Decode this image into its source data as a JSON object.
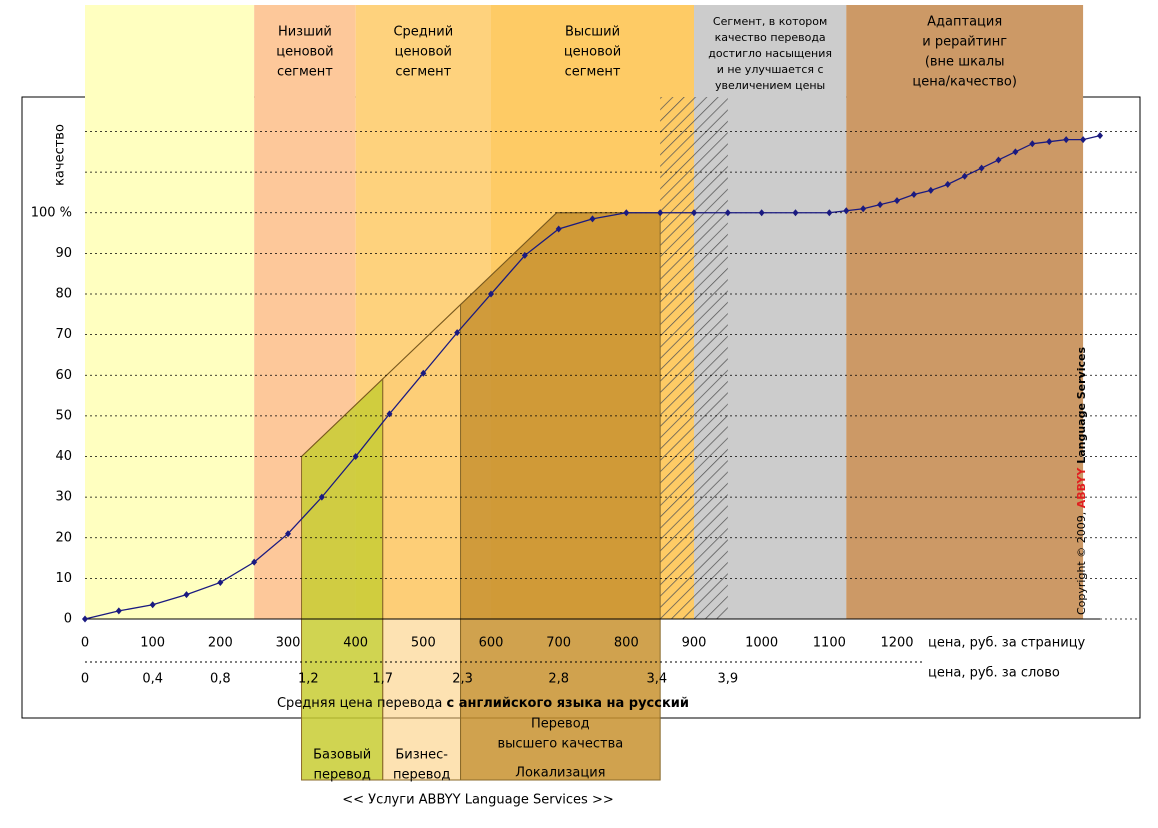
{
  "chart_data": {
    "type": "line",
    "ylabel": "качество",
    "xlabel": "цена, руб. за страницу",
    "x2label": "цена, руб. за слово",
    "caption_regular": "Средняя цена перевода",
    "caption_bold": "с английского языка на русский",
    "footer": "<< Услуги ABBYY Language Services >>",
    "copyright": [
      "Copyright © 2009, ",
      "ABBYY",
      " Language Services"
    ],
    "xlim": [
      0,
      1500
    ],
    "ylim": [
      0,
      128.5
    ],
    "xticks": [
      0,
      100,
      200,
      300,
      400,
      500,
      600,
      700,
      800,
      900,
      1000,
      1100,
      1200
    ],
    "x2ticks": [
      0,
      {
        "value": 100,
        "label": "0,4"
      },
      {
        "value": 200,
        "label": "0,8"
      },
      {
        "value": 330,
        "label": "1,2"
      },
      {
        "value": 440,
        "label": "1,7"
      },
      {
        "value": 558,
        "label": "2,3"
      },
      {
        "value": 700,
        "label": "2,8"
      },
      {
        "value": 845,
        "label": "3,4"
      },
      {
        "value": 950,
        "label": "3,9"
      }
    ],
    "yticks": [
      0,
      10,
      20,
      30,
      40,
      50,
      60,
      70,
      80,
      90,
      {
        "value": 100,
        "label": "100 %"
      }
    ],
    "extra_grid": [
      110,
      120
    ],
    "bands": [
      {
        "from": 0,
        "to": 250,
        "color": "#ffffc0"
      },
      {
        "label": [
          "Низший",
          "ценовой",
          "сегмент"
        ],
        "from": 250,
        "to": 400,
        "color": "#fdc89a"
      },
      {
        "label": [
          "Средний",
          "ценовой",
          "сегмент"
        ],
        "from": 400,
        "to": 600,
        "color": "#fed27d"
      },
      {
        "label": [
          "Высший",
          "ценовой",
          "сегмент"
        ],
        "from": 600,
        "to": 900,
        "color": "#fecb65"
      },
      {
        "label": [
          "Сегмент, в котором",
          "качество перевода",
          "достигло насыщения",
          "и не улучшается с",
          "увеличением цены"
        ],
        "from": 900,
        "to": 1125,
        "color": "#cccccc"
      },
      {
        "label": [
          "Адаптация",
          "и рерайтинг",
          "(вне шкалы",
          "цена/качество)"
        ],
        "from": 1125,
        "to": 1475,
        "color": "#cc9966"
      }
    ],
    "hatch": [
      850,
      950
    ],
    "service_envelope": {
      "x": [
        320,
        697,
        850
      ],
      "y": [
        40,
        100,
        100
      ]
    },
    "services": [
      {
        "label": [
          "Базовый",
          "перевод"
        ],
        "from": 320,
        "to": 440,
        "color": "#c8cc33"
      },
      {
        "label": [
          "Бизнес-",
          "перевод"
        ],
        "from": 440,
        "to": 555,
        "color": "#fcca72"
      },
      {
        "label": [
          "Перевод",
          "высшего качества"
        ],
        "sublabel": "Локализация",
        "from": 555,
        "to": 850,
        "color": "#c8922f"
      }
    ],
    "series": [
      {
        "color": "#1a1a80",
        "x": [
          0,
          50,
          100,
          150,
          200,
          250,
          300,
          350,
          400,
          450,
          500,
          550,
          600,
          650,
          700,
          750,
          800,
          850,
          900,
          950,
          1000,
          1050,
          1100,
          1125,
          1150,
          1175,
          1200,
          1225,
          1250,
          1275,
          1300,
          1325,
          1350,
          1375,
          1400,
          1425,
          1450,
          1475,
          1500
        ],
        "values": [
          0,
          2,
          3.5,
          6,
          9,
          14,
          21,
          30,
          40,
          50.5,
          60.5,
          70.5,
          80,
          89.5,
          96,
          98.5,
          100,
          100,
          100,
          100,
          100,
          100,
          100,
          100.5,
          101,
          102,
          103,
          104.5,
          105.5,
          107,
          109,
          111,
          113,
          115,
          117,
          117.5,
          118,
          118,
          119
        ]
      }
    ]
  }
}
